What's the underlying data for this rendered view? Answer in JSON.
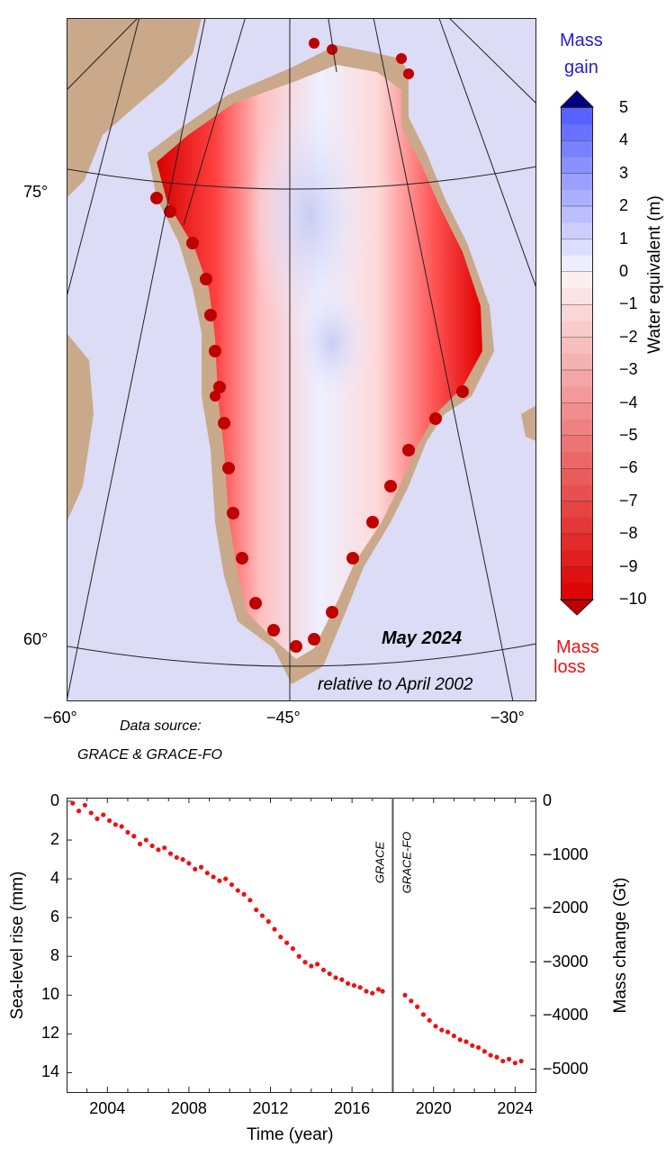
{
  "map": {
    "date_label": "May 2024",
    "relative_label": "relative to April 2002",
    "lat_labels": [
      "75°",
      "60°"
    ],
    "lon_labels": [
      "−60°",
      "−45°",
      "−30°"
    ],
    "data_source_label": "Data source:",
    "data_source_value": "GRACE & GRACE-FO",
    "colors": {
      "ocean": "#dcdcf6",
      "land": "#c9a98a",
      "gain": "#1f1fd0",
      "loss": "#ff0000"
    }
  },
  "colorbar": {
    "top_label_line1": "Mass",
    "top_label_line2": "gain",
    "bottom_label_line1": "Mass",
    "bottom_label_line2": "loss",
    "axis_label": "Water equivalent (m)",
    "ticks": [
      "5",
      "4",
      "3",
      "2",
      "1",
      "0",
      "−1",
      "−2",
      "−3",
      "−4",
      "−5",
      "−6",
      "−7",
      "−8",
      "−9",
      "−10"
    ],
    "range": [
      -10,
      5
    ]
  },
  "chart_data": {
    "type": "scatter",
    "xlabel": "Time (year)",
    "ylabel": "Sea-level rise (mm)",
    "y2label": "Mass change (Gt)",
    "x_ticks": [
      "2004",
      "2008",
      "2012",
      "2016",
      "2020",
      "2024"
    ],
    "y_ticks": [
      "0",
      "2",
      "4",
      "6",
      "8",
      "10",
      "12",
      "14"
    ],
    "y2_ticks": [
      "0",
      "−1000",
      "−2000",
      "−3000",
      "−4000",
      "−5000"
    ],
    "xlim": [
      2002.0,
      2025.0
    ],
    "ylim": [
      0,
      15
    ],
    "y_inverted": true,
    "mission_split_year": 2018.0,
    "mission_labels": [
      "GRACE",
      "GRACE-FO"
    ],
    "series": [
      {
        "color": "#ee1111",
        "x": [
          2002.3,
          2002.6,
          2002.9,
          2003.2,
          2003.5,
          2003.8,
          2004.1,
          2004.4,
          2004.7,
          2005.0,
          2005.3,
          2005.6,
          2005.9,
          2006.2,
          2006.5,
          2006.8,
          2007.1,
          2007.4,
          2007.7,
          2008.0,
          2008.3,
          2008.6,
          2008.9,
          2009.2,
          2009.5,
          2009.8,
          2010.1,
          2010.4,
          2010.7,
          2011.0,
          2011.3,
          2011.6,
          2011.9,
          2012.2,
          2012.5,
          2012.8,
          2013.1,
          2013.4,
          2013.7,
          2014.0,
          2014.3,
          2014.6,
          2014.9,
          2015.2,
          2015.5,
          2015.8,
          2016.1,
          2016.4,
          2016.7,
          2017.0,
          2017.3,
          2017.5,
          2018.6,
          2018.9,
          2019.2,
          2019.5,
          2019.8,
          2020.1,
          2020.4,
          2020.7,
          2021.0,
          2021.3,
          2021.6,
          2021.9,
          2022.2,
          2022.5,
          2022.8,
          2023.1,
          2023.4,
          2023.7,
          2024.0,
          2024.3
        ],
        "values": [
          0.1,
          0.5,
          0.2,
          0.6,
          0.9,
          0.7,
          1.0,
          1.2,
          1.3,
          1.6,
          1.8,
          2.2,
          2.0,
          2.3,
          2.5,
          2.4,
          2.7,
          2.9,
          3.0,
          3.2,
          3.5,
          3.4,
          3.7,
          3.9,
          4.1,
          4.0,
          4.3,
          4.6,
          4.8,
          5.1,
          5.6,
          5.9,
          6.2,
          6.6,
          7.0,
          7.3,
          7.6,
          8.0,
          8.3,
          8.5,
          8.4,
          8.7,
          8.9,
          9.1,
          9.2,
          9.4,
          9.5,
          9.6,
          9.8,
          9.9,
          9.7,
          9.8,
          10.0,
          10.3,
          10.6,
          11.0,
          11.3,
          11.6,
          11.8,
          11.9,
          12.1,
          12.3,
          12.4,
          12.6,
          12.7,
          12.9,
          13.1,
          13.2,
          13.4,
          13.3,
          13.5,
          13.4
        ]
      }
    ]
  }
}
